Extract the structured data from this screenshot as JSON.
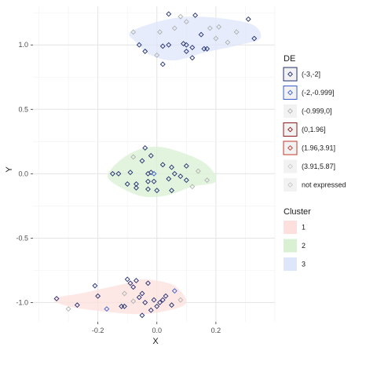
{
  "chart_data": {
    "type": "scatter",
    "xlabel": "X",
    "ylabel": "Y",
    "xlim": [
      -0.42,
      0.4
    ],
    "ylim": [
      -1.15,
      1.3
    ],
    "x_ticks": [
      -0.2,
      0.0,
      0.2
    ],
    "x_tick_labels": [
      "-0.2",
      "0.0",
      "0.2"
    ],
    "y_ticks": [
      -1.0,
      -0.5,
      0.0,
      0.5,
      1.0
    ],
    "y_tick_labels": [
      "-1.0",
      "-0.5",
      "0.0",
      "0.5",
      "1.0"
    ],
    "grid": true,
    "legend_position": "right",
    "legends": [
      {
        "title": "DE",
        "entries": [
          {
            "label": "(-3,-2]",
            "point_color": "#1f2d6e",
            "border_color": "#1f2d6e"
          },
          {
            "label": "(-2,-0.999]",
            "point_color": "#3a5fcd",
            "border_color": "#3a5fcd"
          },
          {
            "label": "(-0.999,0]",
            "point_color": "#b0b0b0",
            "border_color": ""
          },
          {
            "label": "(0,1.96]",
            "point_color": "#8b1a1a",
            "border_color": "#8b1a1a"
          },
          {
            "label": "(1.96,3.91]",
            "point_color": "#c0392b",
            "border_color": "#c0392b"
          },
          {
            "label": "(3.91,5.87]",
            "point_color": "#cccccc",
            "border_color": ""
          },
          {
            "label": "not expressed",
            "point_color": "#c8c8c8",
            "border_color": ""
          }
        ]
      },
      {
        "title": "Cluster",
        "entries": [
          {
            "label": "1",
            "fill": "#fde0dd"
          },
          {
            "label": "2",
            "fill": "#d9f0d3"
          },
          {
            "label": "3",
            "fill": "#dde6fb"
          }
        ]
      }
    ],
    "clusters": [
      {
        "cluster": "1",
        "fill": "#fde0dd",
        "hull": [
          [
            -0.35,
            -0.97
          ],
          [
            -0.26,
            -0.93
          ],
          [
            -0.12,
            -0.86
          ],
          [
            -0.05,
            -0.82
          ],
          [
            0.04,
            -0.85
          ],
          [
            0.08,
            -0.91
          ],
          [
            0.1,
            -1.0
          ],
          [
            0.06,
            -1.05
          ],
          [
            -0.05,
            -1.09
          ],
          [
            -0.18,
            -1.07
          ],
          [
            -0.3,
            -1.03
          ]
        ]
      },
      {
        "cluster": "2",
        "fill": "#d9f0d3",
        "hull": [
          [
            -0.15,
            0.05
          ],
          [
            -0.08,
            0.17
          ],
          [
            0.0,
            0.21
          ],
          [
            0.09,
            0.16
          ],
          [
            0.17,
            0.07
          ],
          [
            0.2,
            -0.06
          ],
          [
            0.12,
            -0.1
          ],
          [
            0.03,
            -0.17
          ],
          [
            -0.06,
            -0.17
          ],
          [
            -0.16,
            -0.05
          ]
        ]
      },
      {
        "cluster": "3",
        "fill": "#dde6fb",
        "hull": [
          [
            -0.09,
            1.1
          ],
          [
            0.02,
            1.19
          ],
          [
            0.12,
            1.22
          ],
          [
            0.24,
            1.2
          ],
          [
            0.33,
            1.15
          ],
          [
            0.35,
            1.05
          ],
          [
            0.28,
            1.0
          ],
          [
            0.16,
            0.94
          ],
          [
            0.06,
            0.88
          ],
          [
            -0.02,
            0.92
          ],
          [
            -0.07,
            1.02
          ]
        ]
      }
    ],
    "series": [
      {
        "cluster": "3",
        "points": [
          {
            "x": 0.04,
            "y": 1.24,
            "de": "(-3,-2]"
          },
          {
            "x": 0.13,
            "y": 1.23,
            "de": "(-3,-2]"
          },
          {
            "x": 0.31,
            "y": 1.2,
            "de": "(-3,-2]"
          },
          {
            "x": 0.08,
            "y": 1.22,
            "de": "(-0.999,0]"
          },
          {
            "x": 0.18,
            "y": 1.13,
            "de": "(-0.999,0]"
          },
          {
            "x": -0.08,
            "y": 1.1,
            "de": "(-0.999,0]"
          },
          {
            "x": 0.01,
            "y": 1.1,
            "de": "(-0.999,0]"
          },
          {
            "x": 0.06,
            "y": 1.13,
            "de": "(-0.999,0]"
          },
          {
            "x": 0.1,
            "y": 1.18,
            "de": "(-0.999,0]"
          },
          {
            "x": 0.21,
            "y": 1.14,
            "de": "(-0.999,0]"
          },
          {
            "x": 0.27,
            "y": 1.1,
            "de": "(-0.999,0]"
          },
          {
            "x": 0.33,
            "y": 1.05,
            "de": "(-3,-2]"
          },
          {
            "x": 0.15,
            "y": 1.08,
            "de": "(-3,-2]"
          },
          {
            "x": 0.2,
            "y": 1.05,
            "de": "(-0.999,0]"
          },
          {
            "x": -0.06,
            "y": 1.0,
            "de": "(-3,-2]"
          },
          {
            "x": -0.04,
            "y": 0.95,
            "de": "(-3,-2]"
          },
          {
            "x": 0.02,
            "y": 0.99,
            "de": "(-3,-2]"
          },
          {
            "x": 0.04,
            "y": 1.0,
            "de": "(-3,-2]"
          },
          {
            "x": 0.09,
            "y": 1.01,
            "de": "(-3,-2]"
          },
          {
            "x": 0.1,
            "y": 1.0,
            "de": "(-3,-2]"
          },
          {
            "x": 0.12,
            "y": 0.98,
            "de": "(-3,-2]"
          },
          {
            "x": 0.1,
            "y": 0.95,
            "de": "(-3,-2]"
          },
          {
            "x": 0.16,
            "y": 0.97,
            "de": "(-3,-2]"
          },
          {
            "x": 0.17,
            "y": 0.97,
            "de": "(-3,-2]"
          },
          {
            "x": 0.02,
            "y": 0.85,
            "de": "(-3,-2]"
          },
          {
            "x": 0.12,
            "y": 0.9,
            "de": "(-3,-2]"
          },
          {
            "x": 0.0,
            "y": 0.92,
            "de": "(-0.999,0]"
          },
          {
            "x": 0.24,
            "y": 1.02,
            "de": "(-0.999,0]"
          }
        ]
      },
      {
        "cluster": "2",
        "points": [
          {
            "x": -0.04,
            "y": 0.2,
            "de": "(-3,-2]"
          },
          {
            "x": -0.02,
            "y": 0.14,
            "de": "(-3,-2]"
          },
          {
            "x": -0.05,
            "y": 0.1,
            "de": "(-3,-2]"
          },
          {
            "x": -0.09,
            "y": 0.01,
            "de": "(-3,-2]"
          },
          {
            "x": -0.13,
            "y": 0.0,
            "de": "(-3,-2]"
          },
          {
            "x": -0.02,
            "y": 0.01,
            "de": "(-3,-2]"
          },
          {
            "x": -0.01,
            "y": 0.0,
            "de": "(-2,-0.999]"
          },
          {
            "x": -0.03,
            "y": 0.0,
            "de": "(-3,-2]"
          },
          {
            "x": 0.05,
            "y": 0.05,
            "de": "(-3,-2]"
          },
          {
            "x": 0.1,
            "y": 0.06,
            "de": "(-3,-2]"
          },
          {
            "x": 0.08,
            "y": -0.02,
            "de": "(-3,-2]"
          },
          {
            "x": 0.04,
            "y": -0.04,
            "de": "(-3,-2]"
          },
          {
            "x": 0.1,
            "y": -0.05,
            "de": "(-3,-2]"
          },
          {
            "x": 0.06,
            "y": 0.0,
            "de": "(-3,-2]"
          },
          {
            "x": -0.03,
            "y": -0.06,
            "de": "(-3,-2]"
          },
          {
            "x": -0.01,
            "y": -0.06,
            "de": "(-3,-2]"
          },
          {
            "x": -0.1,
            "y": -0.08,
            "de": "(-3,-2]"
          },
          {
            "x": -0.07,
            "y": -0.08,
            "de": "(-3,-2]"
          },
          {
            "x": -0.07,
            "y": -0.11,
            "de": "(-3,-2]"
          },
          {
            "x": -0.03,
            "y": -0.12,
            "de": "(-3,-2]"
          },
          {
            "x": 0.0,
            "y": -0.13,
            "de": "(-3,-2]"
          },
          {
            "x": 0.05,
            "y": -0.13,
            "de": "(-3,-2]"
          },
          {
            "x": -0.15,
            "y": 0.0,
            "de": "(-3,-2]"
          },
          {
            "x": 0.02,
            "y": 0.07,
            "de": "(-3,-2]"
          },
          {
            "x": 0.14,
            "y": 0.02,
            "de": "(-0.999,0]"
          },
          {
            "x": 0.17,
            "y": -0.05,
            "de": "(-0.999,0]"
          },
          {
            "x": 0.12,
            "y": -0.1,
            "de": "(-0.999,0]"
          },
          {
            "x": -0.08,
            "y": 0.13,
            "de": "(-0.999,0]"
          }
        ]
      },
      {
        "cluster": "1",
        "points": [
          {
            "x": -0.34,
            "y": -0.97,
            "de": "(-3,-2]"
          },
          {
            "x": -0.27,
            "y": -1.02,
            "de": "(-3,-2]"
          },
          {
            "x": -0.21,
            "y": -0.87,
            "de": "(-3,-2]"
          },
          {
            "x": -0.2,
            "y": -0.95,
            "de": "(-3,-2]"
          },
          {
            "x": -0.17,
            "y": -1.05,
            "de": "(-2,-0.999]"
          },
          {
            "x": -0.12,
            "y": -1.03,
            "de": "(-3,-2]"
          },
          {
            "x": -0.11,
            "y": -1.03,
            "de": "(-3,-2]"
          },
          {
            "x": -0.1,
            "y": -0.82,
            "de": "(-3,-2]"
          },
          {
            "x": -0.09,
            "y": -0.85,
            "de": "(-3,-2]"
          },
          {
            "x": -0.08,
            "y": -0.88,
            "de": "(-3,-2]"
          },
          {
            "x": -0.07,
            "y": -0.83,
            "de": "(-3,-2]"
          },
          {
            "x": -0.06,
            "y": -0.96,
            "de": "(-3,-2]"
          },
          {
            "x": -0.05,
            "y": -0.93,
            "de": "(-3,-2]"
          },
          {
            "x": -0.04,
            "y": -1.0,
            "de": "(-3,-2]"
          },
          {
            "x": -0.03,
            "y": -0.85,
            "de": "(-3,-2]"
          },
          {
            "x": -0.02,
            "y": -1.06,
            "de": "(-3,-2]"
          },
          {
            "x": -0.01,
            "y": -0.98,
            "de": "(-3,-2]"
          },
          {
            "x": 0.0,
            "y": -1.03,
            "de": "(-3,-2]"
          },
          {
            "x": 0.01,
            "y": -1.0,
            "de": "(-3,-2]"
          },
          {
            "x": 0.02,
            "y": -0.98,
            "de": "(-3,-2]"
          },
          {
            "x": -0.05,
            "y": -1.1,
            "de": "(-3,-2]"
          },
          {
            "x": 0.03,
            "y": -0.95,
            "de": "(-3,-2]"
          },
          {
            "x": 0.06,
            "y": -0.91,
            "de": "(-2,-0.999]"
          },
          {
            "x": 0.05,
            "y": -1.02,
            "de": "(-3,-2]"
          },
          {
            "x": -0.11,
            "y": -0.93,
            "de": "(-0.999,0]"
          },
          {
            "x": -0.3,
            "y": -1.05,
            "de": "(-0.999,0]"
          },
          {
            "x": -0.08,
            "y": -0.99,
            "de": "(-0.999,0]"
          },
          {
            "x": 0.08,
            "y": -0.98,
            "de": "(-0.999,0]"
          }
        ]
      }
    ]
  }
}
